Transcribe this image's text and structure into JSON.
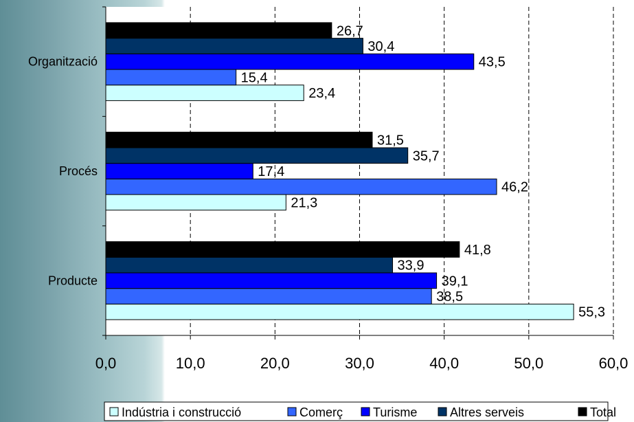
{
  "chart_data": {
    "type": "bar",
    "orientation": "horizontal",
    "categories": [
      "Organització",
      "Procés",
      "Producte"
    ],
    "series": [
      {
        "name": "Indústria i construcció",
        "color": "#ccffff",
        "values": [
          23.4,
          21.3,
          55.3
        ]
      },
      {
        "name": "Comerç",
        "color": "#3366ff",
        "values": [
          15.4,
          46.2,
          38.5
        ]
      },
      {
        "name": "Turisme",
        "color": "#0000ff",
        "values": [
          43.5,
          17.4,
          39.1
        ]
      },
      {
        "name": "Altres serveis",
        "color": "#003366",
        "values": [
          30.4,
          35.7,
          33.9
        ]
      },
      {
        "name": "Total",
        "color": "#000000",
        "values": [
          26.7,
          31.5,
          41.8
        ]
      }
    ],
    "xlim": [
      0,
      60
    ],
    "xticks": [
      0,
      10,
      20,
      30,
      40,
      50,
      60
    ],
    "xtick_labels": [
      "0,0",
      "10,0",
      "20,0",
      "30,0",
      "40,0",
      "50,0",
      "60,0"
    ],
    "value_labels": [
      [
        "23,4",
        "21,3",
        "55,3"
      ],
      [
        "15,4",
        "46,2",
        "38,5"
      ],
      [
        "43,5",
        "17,4",
        "39,1"
      ],
      [
        "30,4",
        "35,7",
        "33,9"
      ],
      [
        "26,7",
        "31,5",
        "41,8"
      ]
    ],
    "grid": "vertical dashed",
    "legend_position": "bottom"
  }
}
